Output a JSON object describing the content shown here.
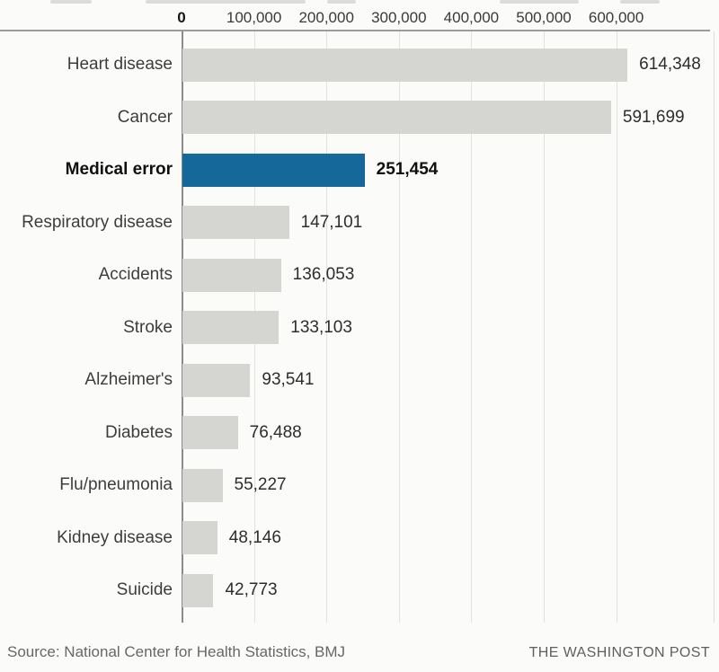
{
  "chart_data": {
    "type": "bar",
    "orientation": "horizontal",
    "categories": [
      "Heart disease",
      "Cancer",
      "Medical error",
      "Respiratory disease",
      "Accidents",
      "Stroke",
      "Alzheimer's",
      "Diabetes",
      "Flu/pneumonia",
      "Kidney disease",
      "Suicide"
    ],
    "values": [
      614348,
      591699,
      251454,
      147101,
      136053,
      133103,
      93541,
      76488,
      55227,
      48146,
      42773
    ],
    "value_labels": [
      "614,348",
      "591,699",
      "251,454",
      "147,101",
      "136,053",
      "133,103",
      "93,541",
      "76,488",
      "55,227",
      "48,146",
      "42,773"
    ],
    "highlight": {
      "index": 2,
      "category": "Medical error",
      "color": "#15689a"
    },
    "bar_color": "#d5d5d1",
    "x_axis": {
      "position": "top",
      "ticks": [
        0,
        100000,
        200000,
        300000,
        400000,
        500000,
        600000
      ],
      "tick_labels": [
        "0",
        "100,000",
        "200,000",
        "300,000",
        "400,000",
        "500,000",
        "600,000"
      ],
      "range": [
        0,
        742000
      ],
      "grid": true
    },
    "legend": null,
    "title": ""
  },
  "footer": {
    "source": "Source: National Center for Health Statistics, BMJ",
    "publisher": "THE WASHINGTON POST"
  }
}
